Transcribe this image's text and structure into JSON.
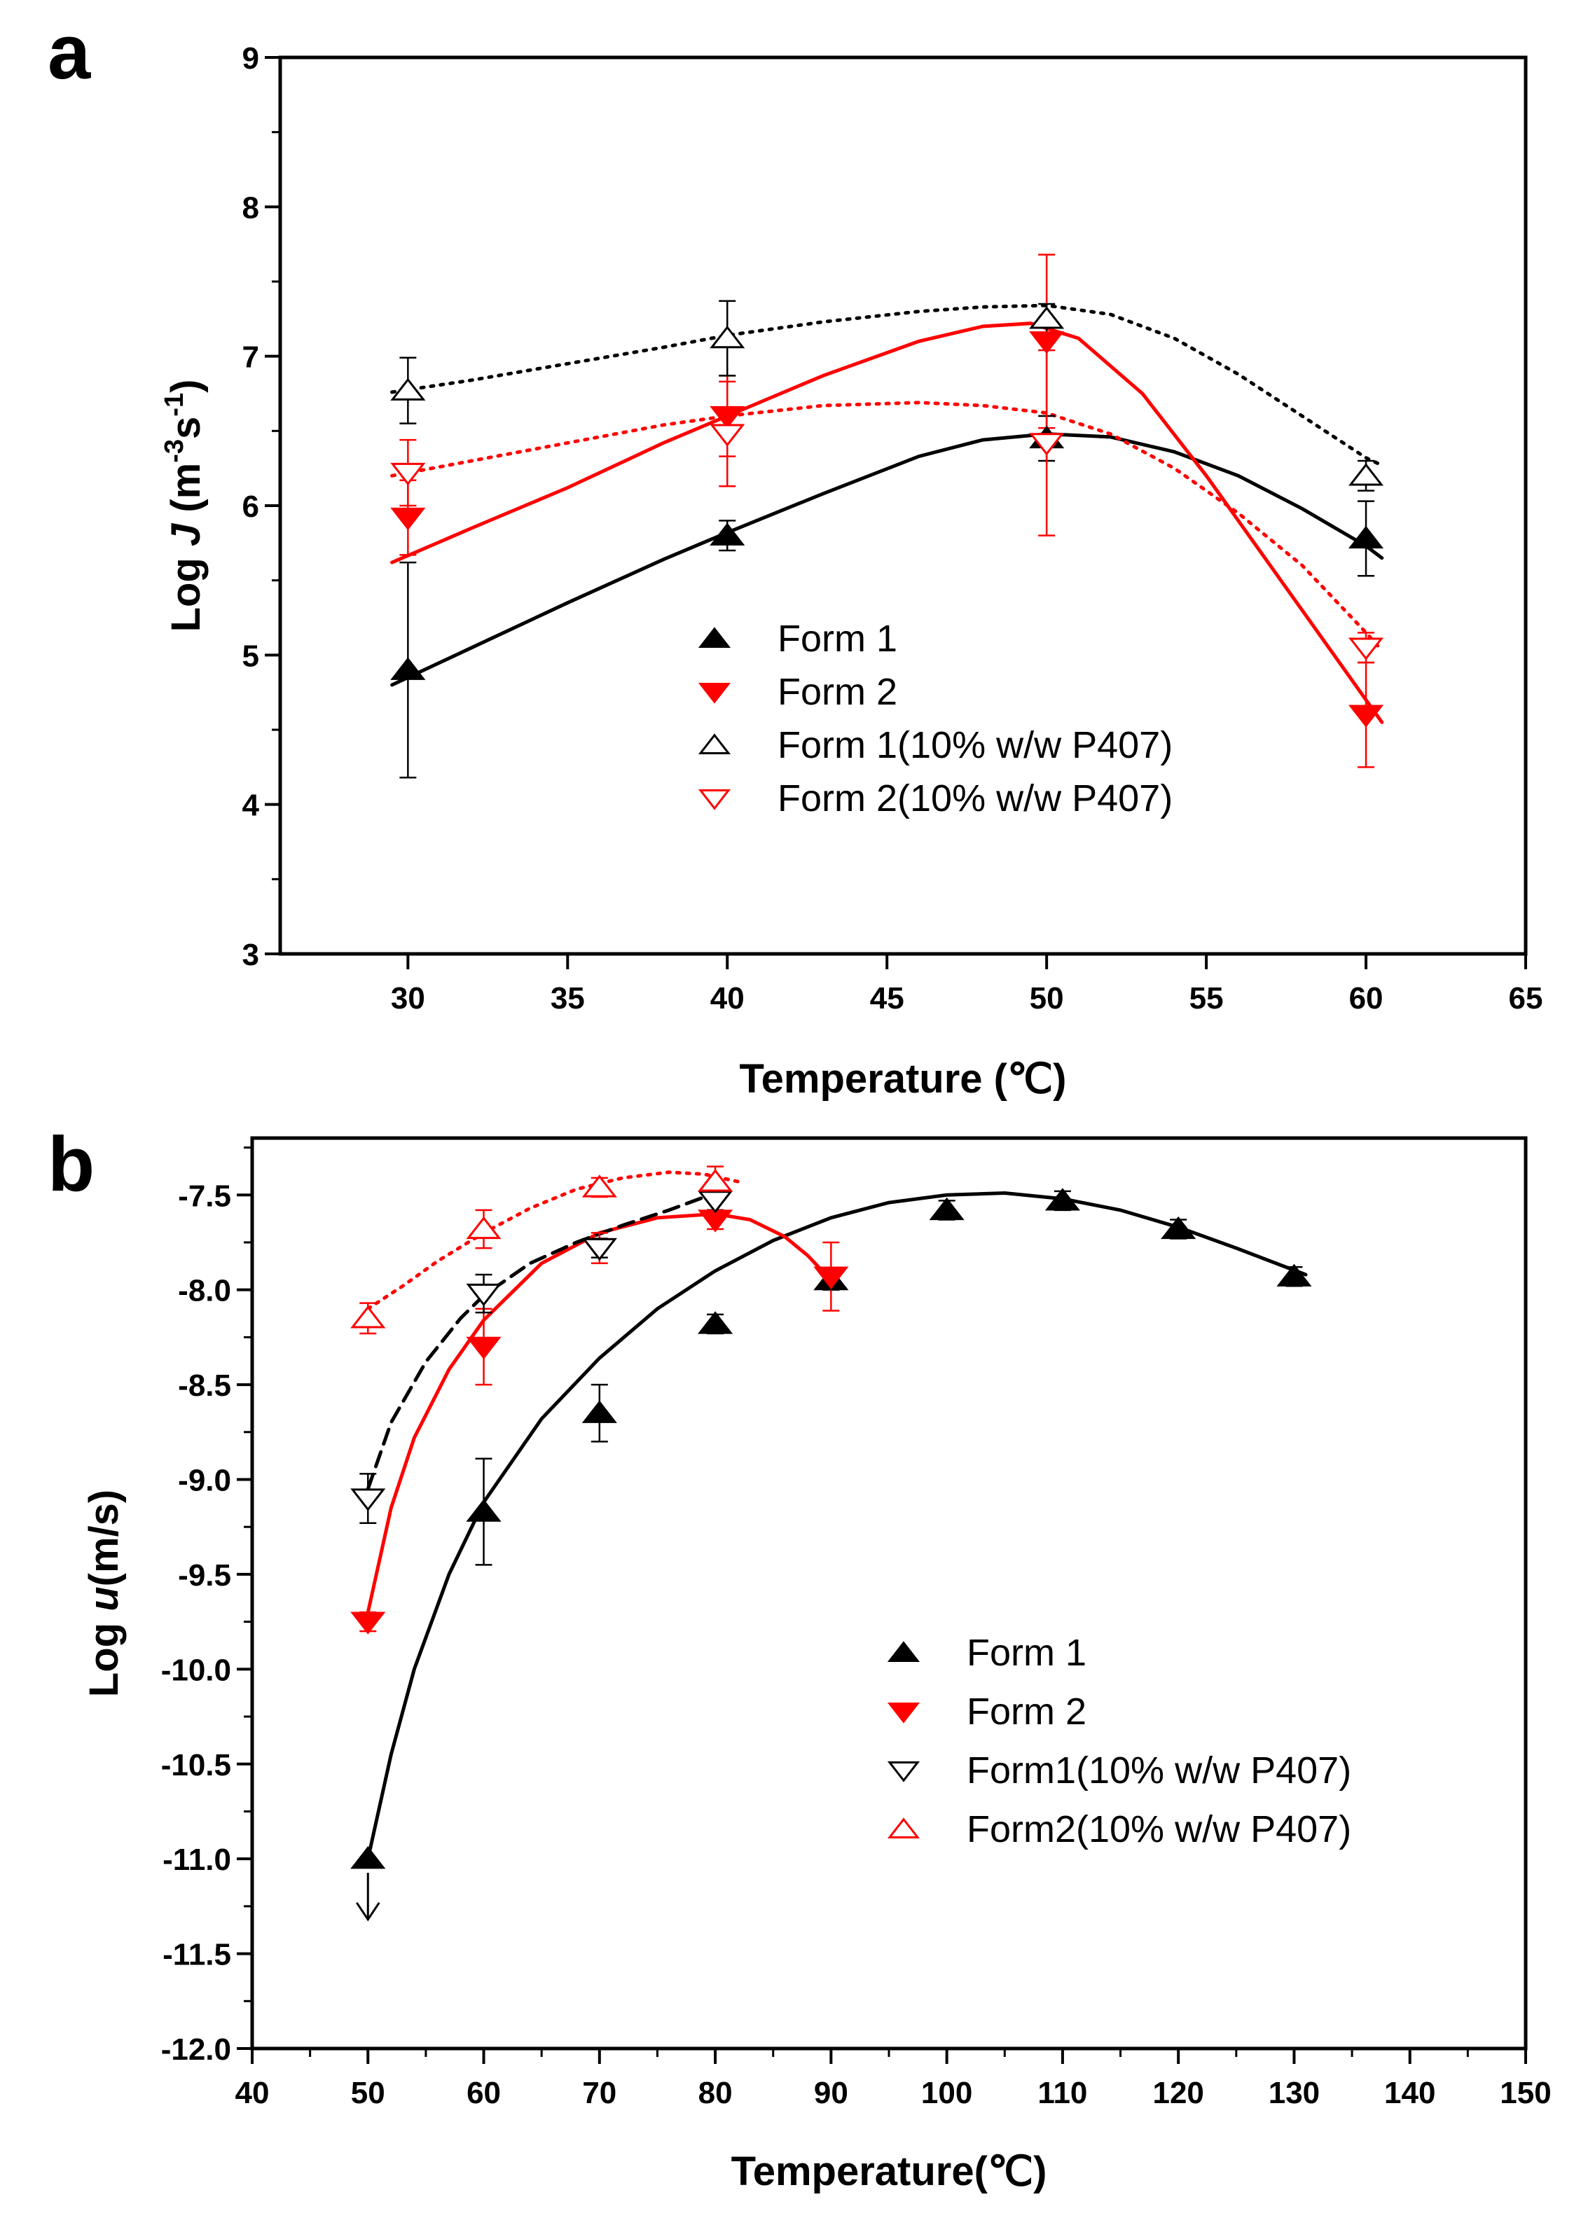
{
  "chart_data": [
    {
      "panel": "a",
      "type": "scatter",
      "xlabel": "Temperature (℃)",
      "ylabel": {
        "prefix": "Log ",
        "var": "J",
        "unit_open": " (m",
        "exp1": "-3",
        "mid": "s",
        "exp2": "-1",
        "unit_close": ")"
      },
      "xlim": [
        26,
        65
      ],
      "ylim": [
        3,
        9
      ],
      "xticks": [
        30,
        35,
        40,
        45,
        50,
        55,
        60,
        65
      ],
      "yticks": [
        3,
        4,
        5,
        6,
        7,
        8,
        9
      ],
      "grid": false,
      "legend_position": "bottom-center",
      "series": [
        {
          "name": "Form 1",
          "marker": "triangle-up",
          "filled": true,
          "color": "#000000",
          "points": [
            {
              "x": 30,
              "y": 4.9,
              "err": 0.72
            },
            {
              "x": 40,
              "y": 5.8,
              "err": 0.1
            },
            {
              "x": 50,
              "y": 6.45,
              "err": 0.15
            },
            {
              "x": 60,
              "y": 5.78,
              "err": 0.25
            }
          ],
          "fit": {
            "style": "solid",
            "points": [
              [
                29.5,
                4.8
              ],
              [
                32,
                5.05
              ],
              [
                35,
                5.35
              ],
              [
                38,
                5.64
              ],
              [
                40,
                5.82
              ],
              [
                43,
                6.08
              ],
              [
                46,
                6.33
              ],
              [
                48,
                6.44
              ],
              [
                50,
                6.48
              ],
              [
                52,
                6.46
              ],
              [
                54,
                6.36
              ],
              [
                56,
                6.2
              ],
              [
                58,
                5.98
              ],
              [
                60,
                5.73
              ],
              [
                60.5,
                5.65
              ]
            ]
          }
        },
        {
          "name": "Form 2",
          "marker": "triangle-down",
          "filled": true,
          "color": "#ff0000",
          "points": [
            {
              "x": 30,
              "y": 5.92,
              "err": 0.25
            },
            {
              "x": 40,
              "y": 6.6,
              "err": 0.27
            },
            {
              "x": 50,
              "y": 7.1,
              "err": 0.58
            },
            {
              "x": 60,
              "y": 4.6,
              "err": 0.35
            }
          ],
          "fit": {
            "style": "solid",
            "points": [
              [
                29.5,
                5.62
              ],
              [
                32,
                5.85
              ],
              [
                35,
                6.12
              ],
              [
                38,
                6.42
              ],
              [
                40,
                6.6
              ],
              [
                43,
                6.87
              ],
              [
                46,
                7.1
              ],
              [
                48,
                7.2
              ],
              [
                49.5,
                7.22
              ],
              [
                51,
                7.12
              ],
              [
                53,
                6.75
              ],
              [
                55,
                6.2
              ],
              [
                57,
                5.6
              ],
              [
                59,
                5.0
              ],
              [
                60.5,
                4.55
              ]
            ]
          }
        },
        {
          "name": "Form 1(10% w/w P407)",
          "marker": "triangle-up",
          "filled": false,
          "color": "#000000",
          "points": [
            {
              "x": 30,
              "y": 6.77,
              "err": 0.22
            },
            {
              "x": 40,
              "y": 7.12,
              "err": 0.25
            },
            {
              "x": 50,
              "y": 7.25,
              "err": 0.1
            },
            {
              "x": 60,
              "y": 6.2,
              "err": 0.1
            }
          ],
          "fit": {
            "style": "dotted",
            "points": [
              [
                29.5,
                6.76
              ],
              [
                32,
                6.84
              ],
              [
                35,
                6.95
              ],
              [
                38,
                7.06
              ],
              [
                40,
                7.14
              ],
              [
                43,
                7.23
              ],
              [
                46,
                7.3
              ],
              [
                48,
                7.33
              ],
              [
                50,
                7.34
              ],
              [
                52,
                7.28
              ],
              [
                54,
                7.12
              ],
              [
                56,
                6.88
              ],
              [
                58,
                6.6
              ],
              [
                60,
                6.32
              ],
              [
                60.5,
                6.27
              ]
            ]
          }
        },
        {
          "name": "Form 2(10% w/w P407)",
          "marker": "triangle-down",
          "filled": false,
          "color": "#ff0000",
          "points": [
            {
              "x": 30,
              "y": 6.22,
              "err": 0.22
            },
            {
              "x": 40,
              "y": 6.48,
              "err": 0.35
            },
            {
              "x": 50,
              "y": 6.42,
              "err": 0.62
            },
            {
              "x": 60,
              "y": 5.05,
              "err": 0.1
            }
          ],
          "fit": {
            "style": "dotted",
            "points": [
              [
                29.5,
                6.2
              ],
              [
                32,
                6.3
              ],
              [
                35,
                6.42
              ],
              [
                38,
                6.54
              ],
              [
                40,
                6.6
              ],
              [
                43,
                6.67
              ],
              [
                46,
                6.69
              ],
              [
                48,
                6.67
              ],
              [
                50,
                6.62
              ],
              [
                52,
                6.48
              ],
              [
                54,
                6.25
              ],
              [
                56,
                5.95
              ],
              [
                58,
                5.6
              ],
              [
                60,
                5.15
              ],
              [
                60.5,
                5.03
              ]
            ]
          }
        }
      ]
    },
    {
      "panel": "b",
      "type": "scatter",
      "xlabel": "Temperature(℃)",
      "ylabel": {
        "prefix": "Log ",
        "var": "u",
        "unit": "(m/s)"
      },
      "xlim": [
        40,
        150
      ],
      "ylim": [
        -12.0,
        -7.2
      ],
      "xticks": [
        40,
        50,
        60,
        70,
        80,
        90,
        100,
        110,
        120,
        130,
        140,
        150
      ],
      "yticks": [
        -12.0,
        -11.5,
        -11.0,
        -10.5,
        -10.0,
        -9.5,
        -9.0,
        -8.5,
        -8.0,
        -7.5
      ],
      "grid": false,
      "legend_position": "bottom-right",
      "arrow_annotation": {
        "x": 50,
        "from_y": -11.0,
        "to_y": -11.32,
        "direction": "down"
      },
      "series": [
        {
          "name": "Form 1",
          "marker": "triangle-up",
          "filled": true,
          "color": "#000000",
          "points": [
            {
              "x": 50,
              "y": -11.0,
              "err": 0
            },
            {
              "x": 60,
              "y": -9.17,
              "err": 0.28
            },
            {
              "x": 70,
              "y": -8.65,
              "err": 0.15
            },
            {
              "x": 80,
              "y": -8.18,
              "err": 0.05
            },
            {
              "x": 90,
              "y": -7.95,
              "err": 0.05
            },
            {
              "x": 100,
              "y": -7.58,
              "err": 0.05
            },
            {
              "x": 110,
              "y": -7.53,
              "err": 0.05
            },
            {
              "x": 120,
              "y": -7.68,
              "err": 0.05
            },
            {
              "x": 130,
              "y": -7.93,
              "err": 0.05
            }
          ],
          "fit": {
            "style": "solid",
            "points": [
              [
                50,
                -11.0
              ],
              [
                52,
                -10.45
              ],
              [
                54,
                -10.0
              ],
              [
                57,
                -9.5
              ],
              [
                60,
                -9.12
              ],
              [
                65,
                -8.68
              ],
              [
                70,
                -8.36
              ],
              [
                75,
                -8.1
              ],
              [
                80,
                -7.9
              ],
              [
                85,
                -7.74
              ],
              [
                90,
                -7.62
              ],
              [
                95,
                -7.54
              ],
              [
                100,
                -7.5
              ],
              [
                105,
                -7.49
              ],
              [
                110,
                -7.52
              ],
              [
                115,
                -7.58
              ],
              [
                120,
                -7.67
              ],
              [
                125,
                -7.78
              ],
              [
                131,
                -7.92
              ]
            ]
          }
        },
        {
          "name": "Form 2",
          "marker": "triangle-down",
          "filled": true,
          "color": "#ff0000",
          "points": [
            {
              "x": 50,
              "y": -9.75,
              "err": 0.05
            },
            {
              "x": 60,
              "y": -8.3,
              "err": 0.2
            },
            {
              "x": 70,
              "y": -7.78,
              "err": 0.08
            },
            {
              "x": 80,
              "y": -7.63,
              "err": 0.05
            },
            {
              "x": 90,
              "y": -7.93,
              "err": 0.18
            }
          ],
          "fit": {
            "style": "solid",
            "points": [
              [
                50,
                -9.7
              ],
              [
                52,
                -9.15
              ],
              [
                54,
                -8.78
              ],
              [
                57,
                -8.42
              ],
              [
                60,
                -8.16
              ],
              [
                65,
                -7.86
              ],
              [
                70,
                -7.7
              ],
              [
                75,
                -7.62
              ],
              [
                80,
                -7.6
              ],
              [
                83,
                -7.63
              ],
              [
                86,
                -7.72
              ],
              [
                88,
                -7.82
              ],
              [
                90,
                -7.95
              ]
            ]
          }
        },
        {
          "name": "Form1(10% w/w P407)",
          "marker": "triangle-down",
          "filled": false,
          "color": "#000000",
          "points": [
            {
              "x": 50,
              "y": -9.1,
              "err": 0.13
            },
            {
              "x": 60,
              "y": -8.02,
              "err": 0.1
            },
            {
              "x": 70,
              "y": -7.78,
              "err": 0.05
            },
            {
              "x": 80,
              "y": -7.53,
              "err": 0.05
            }
          ],
          "fit": {
            "style": "dashed",
            "points": [
              [
                50,
                -9.05
              ],
              [
                52,
                -8.7
              ],
              [
                55,
                -8.38
              ],
              [
                58,
                -8.15
              ],
              [
                60,
                -8.03
              ],
              [
                64,
                -7.86
              ],
              [
                68,
                -7.75
              ],
              [
                72,
                -7.66
              ],
              [
                76,
                -7.58
              ],
              [
                80,
                -7.49
              ]
            ]
          }
        },
        {
          "name": "Form2(10% w/w P407)",
          "marker": "triangle-up",
          "filled": false,
          "color": "#ff0000",
          "points": [
            {
              "x": 50,
              "y": -8.15,
              "err": 0.08
            },
            {
              "x": 60,
              "y": -7.68,
              "err": 0.1
            },
            {
              "x": 70,
              "y": -7.46,
              "err": 0.05
            },
            {
              "x": 80,
              "y": -7.43,
              "err": 0.08
            }
          ],
          "fit": {
            "style": "dotted",
            "points": [
              [
                50,
                -8.1
              ],
              [
                53,
                -7.98
              ],
              [
                56,
                -7.85
              ],
              [
                60,
                -7.7
              ],
              [
                64,
                -7.57
              ],
              [
                68,
                -7.47
              ],
              [
                72,
                -7.41
              ],
              [
                76,
                -7.38
              ],
              [
                79,
                -7.39
              ],
              [
                82,
                -7.43
              ]
            ]
          }
        }
      ]
    }
  ]
}
